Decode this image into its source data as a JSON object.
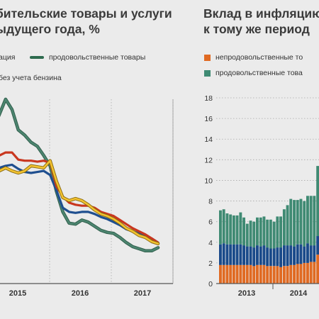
{
  "left_chart": {
    "title": "бительские товары и услуги\nыдущего года, %",
    "legend": [
      {
        "label": "ация",
        "color": "#2e6b4e"
      },
      {
        "label": "продовольственные товары",
        "color": "#2e6b4e"
      },
      {
        "label": "без учета бензина",
        "color": "#f2c230"
      }
    ],
    "x_ticks": [
      "2015",
      "2016",
      "2017"
    ]
  },
  "chart_data": [
    {
      "type": "line",
      "title": "",
      "xlabel": "",
      "ylabel": "",
      "x_ticks": [
        "2015",
        "2016",
        "2017"
      ],
      "ylim": [
        0,
        18
      ],
      "x": [
        0,
        0.1,
        0.2,
        0.3,
        0.4,
        0.5,
        0.6,
        0.7,
        0.8,
        0.9,
        1.0,
        1.1,
        1.2,
        1.3,
        1.4,
        1.5,
        1.6,
        1.7,
        1.8,
        1.9,
        2.0,
        2.1,
        2.2,
        2.3,
        2.4,
        2.5,
        2.6
      ],
      "series": [
        {
          "name": "",
          "color": "#1f4f8f",
          "values": [
            11.0,
            11.3,
            11.5,
            11.6,
            11.2,
            10.9,
            10.8,
            10.9,
            11.0,
            10.6,
            9.1,
            7.4,
            7.0,
            6.9,
            7.0,
            7.0,
            6.8,
            6.5,
            6.3,
            6.0,
            5.7,
            5.3,
            5.1,
            4.9,
            4.7,
            4.4,
            4.0
          ]
        },
        {
          "name": "",
          "color": "#c9371f",
          "values": [
            12.0,
            12.5,
            12.8,
            12.8,
            12.1,
            12.0,
            12.0,
            11.9,
            12.0,
            11.8,
            9.5,
            8.5,
            7.9,
            7.7,
            7.6,
            7.6,
            7.4,
            7.0,
            6.8,
            6.6,
            6.2,
            5.8,
            5.4,
            5.1,
            4.8,
            4.4,
            4.0
          ]
        },
        {
          "name": "продовольственные товары",
          "color": "#4c8570",
          "values": [
            15.0,
            16.5,
            18.0,
            17.0,
            15.0,
            14.5,
            13.8,
            13.4,
            12.5,
            11.5,
            9.0,
            7.0,
            5.9,
            5.8,
            6.2,
            6.0,
            5.6,
            5.2,
            5.0,
            4.9,
            4.5,
            4.0,
            3.6,
            3.4,
            3.2,
            3.2,
            3.5
          ]
        },
        {
          "name": "без учета бензина",
          "color": "#f2c230",
          "values": [
            10.5,
            11.0,
            11.3,
            11.0,
            10.8,
            11.0,
            11.5,
            11.4,
            11.3,
            12.0,
            10.0,
            8.4,
            8.1,
            8.3,
            8.1,
            7.7,
            7.2,
            6.8,
            6.6,
            6.3,
            5.9,
            5.4,
            5.1,
            4.7,
            4.5,
            4.1,
            3.9
          ]
        }
      ]
    },
    {
      "type": "bar",
      "stacked": true,
      "title": "Вклад в инфляцию\nк тому же период",
      "xlabel": "",
      "ylabel": "",
      "ylim": [
        0,
        18
      ],
      "y_ticks": [
        0,
        2,
        4,
        6,
        8,
        10,
        12,
        14,
        16,
        18
      ],
      "x_ticks": [
        "2013",
        "2014"
      ],
      "legend": [
        {
          "label": "непродовольственные то",
          "color": "#e06a22"
        },
        {
          "label": "продовольственные това",
          "color": "#3f8a73"
        }
      ],
      "categories": [
        "1",
        "2",
        "3",
        "4",
        "5",
        "6",
        "7",
        "8",
        "9",
        "10",
        "11",
        "12",
        "13",
        "14",
        "15",
        "16",
        "17",
        "18",
        "19",
        "20",
        "21",
        "22",
        "23",
        "24",
        "25",
        "26",
        "27",
        "28",
        "29",
        "30"
      ],
      "series": [
        {
          "name": "непродовольственные то",
          "color": "#e06a22",
          "values": [
            1.8,
            1.8,
            1.8,
            1.8,
            1.8,
            1.8,
            1.8,
            1.8,
            1.8,
            1.8,
            1.7,
            1.8,
            1.8,
            1.8,
            1.7,
            1.7,
            1.7,
            1.7,
            1.6,
            1.7,
            1.7,
            1.8,
            1.8,
            1.9,
            1.9,
            2.0,
            2.0,
            2.1,
            2.1,
            2.8
          ]
        },
        {
          "name": "",
          "color": "#1a4a8a",
          "values": [
            2.0,
            2.1,
            2.0,
            2.0,
            2.0,
            2.0,
            2.0,
            1.9,
            1.8,
            1.8,
            1.8,
            1.9,
            1.8,
            1.9,
            1.8,
            1.7,
            1.7,
            1.8,
            1.9,
            2.0,
            2.0,
            1.9,
            1.8,
            1.9,
            1.9,
            1.6,
            1.9,
            1.6,
            1.6,
            1.8
          ]
        },
        {
          "name": "продовольственные това",
          "color": "#3f8a73",
          "values": [
            3.3,
            3.3,
            3.0,
            2.9,
            2.8,
            2.8,
            3.1,
            2.7,
            2.2,
            2.5,
            2.5,
            2.7,
            2.8,
            2.8,
            2.7,
            2.8,
            2.6,
            3.0,
            3.0,
            3.5,
            3.9,
            4.5,
            4.5,
            4.3,
            4.4,
            4.4,
            4.6,
            4.8,
            4.8,
            6.8
          ]
        }
      ]
    }
  ]
}
